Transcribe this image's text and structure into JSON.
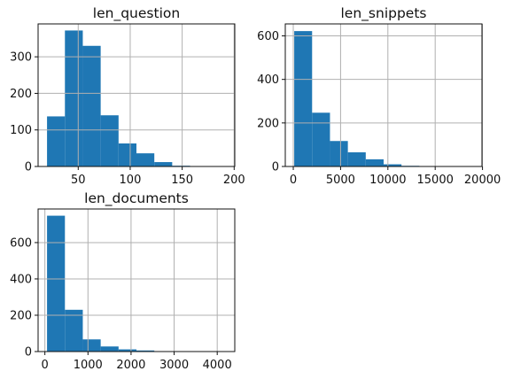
{
  "figure": {},
  "chart_data": [
    {
      "type": "bar",
      "title": "len_question",
      "bins": [
        {
          "start": 20,
          "end": 37.2,
          "count": 137
        },
        {
          "start": 37.2,
          "end": 54.4,
          "count": 372
        },
        {
          "start": 54.4,
          "end": 71.6,
          "count": 330
        },
        {
          "start": 71.6,
          "end": 88.8,
          "count": 140
        },
        {
          "start": 88.8,
          "end": 106,
          "count": 63
        },
        {
          "start": 106,
          "end": 123.2,
          "count": 36
        },
        {
          "start": 123.2,
          "end": 140.4,
          "count": 12
        },
        {
          "start": 140.4,
          "end": 157.6,
          "count": 2
        },
        {
          "start": 157.6,
          "end": 174.8,
          "count": 1
        },
        {
          "start": 174.8,
          "end": 192,
          "count": 1
        }
      ],
      "xlim": [
        11.4,
        200.6
      ],
      "ylim": [
        0,
        390
      ],
      "xticks": [
        50,
        100,
        150,
        200
      ],
      "yticks": [
        0,
        100,
        200,
        300
      ],
      "color": "#1f77b4",
      "grid": true
    },
    {
      "type": "bar",
      "title": "len_snippets",
      "bins": [
        {
          "start": 100,
          "end": 1990,
          "count": 622
        },
        {
          "start": 1990,
          "end": 3880,
          "count": 247
        },
        {
          "start": 3880,
          "end": 5770,
          "count": 117
        },
        {
          "start": 5770,
          "end": 7660,
          "count": 65
        },
        {
          "start": 7660,
          "end": 9550,
          "count": 33
        },
        {
          "start": 9550,
          "end": 11440,
          "count": 10
        },
        {
          "start": 11440,
          "end": 13330,
          "count": 3
        },
        {
          "start": 13330,
          "end": 15220,
          "count": 2
        },
        {
          "start": 15220,
          "end": 17110,
          "count": 1
        },
        {
          "start": 17110,
          "end": 19000,
          "count": 1
        }
      ],
      "xlim": [
        -845,
        19945
      ],
      "ylim": [
        0,
        655
      ],
      "xticks": [
        0,
        5000,
        10000,
        15000,
        20000
      ],
      "yticks": [
        0,
        200,
        400,
        600
      ],
      "color": "#1f77b4",
      "grid": true
    },
    {
      "type": "bar",
      "title": "len_documents",
      "bins": [
        {
          "start": 50,
          "end": 465,
          "count": 748
        },
        {
          "start": 465,
          "end": 880,
          "count": 230
        },
        {
          "start": 880,
          "end": 1295,
          "count": 67
        },
        {
          "start": 1295,
          "end": 1710,
          "count": 28
        },
        {
          "start": 1710,
          "end": 2125,
          "count": 12
        },
        {
          "start": 2125,
          "end": 2540,
          "count": 6
        },
        {
          "start": 2540,
          "end": 2955,
          "count": 2
        },
        {
          "start": 2955,
          "end": 3370,
          "count": 1
        },
        {
          "start": 3370,
          "end": 3785,
          "count": 1
        },
        {
          "start": 3785,
          "end": 4200,
          "count": 2
        }
      ],
      "xlim": [
        -157.5,
        4407.5
      ],
      "ylim": [
        0,
        785
      ],
      "xticks": [
        0,
        1000,
        2000,
        3000,
        4000
      ],
      "yticks": [
        0,
        200,
        400,
        600
      ],
      "color": "#1f77b4",
      "grid": true
    }
  ]
}
